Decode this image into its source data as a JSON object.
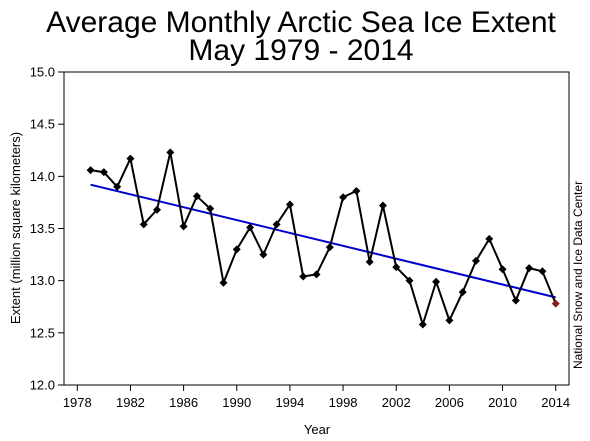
{
  "chart_data": {
    "type": "line",
    "title_line1": "Average Monthly Arctic Sea Ice Extent",
    "title_line2": "May 1979 - 2014",
    "xlabel": "Year",
    "ylabel": "Extent (million square kilometers)",
    "credit": "National Snow and Ice Data Center",
    "xlim": [
      1977,
      2015
    ],
    "ylim": [
      12.0,
      15.0
    ],
    "xticks": [
      1978,
      1982,
      1986,
      1990,
      1994,
      1998,
      2002,
      2006,
      2010,
      2014
    ],
    "yticks": [
      "12.0",
      "12.5",
      "13.0",
      "13.5",
      "14.0",
      "14.5",
      "15.0"
    ],
    "grid": false,
    "series": [
      {
        "color": "#000000",
        "marker": "diamond",
        "highlight_last_color": "#8b1a1a",
        "x": [
          1979,
          1980,
          1981,
          1982,
          1983,
          1984,
          1985,
          1986,
          1987,
          1988,
          1989,
          1990,
          1991,
          1992,
          1993,
          1994,
          1995,
          1996,
          1997,
          1998,
          1999,
          2000,
          2001,
          2002,
          2003,
          2004,
          2005,
          2006,
          2007,
          2008,
          2009,
          2010,
          2011,
          2012,
          2013,
          2014
        ],
        "y": [
          14.06,
          14.04,
          13.9,
          14.17,
          13.54,
          13.68,
          14.23,
          13.52,
          13.81,
          13.69,
          12.98,
          13.3,
          13.51,
          13.25,
          13.54,
          13.73,
          13.04,
          13.06,
          13.32,
          13.8,
          13.86,
          13.18,
          13.72,
          13.13,
          13.0,
          12.58,
          12.99,
          12.62,
          12.89,
          13.19,
          13.4,
          13.11,
          12.81,
          13.12,
          13.09,
          12.78
        ]
      },
      {
        "type": "trend",
        "color": "#0000cc",
        "x": [
          1979,
          2014
        ],
        "y": [
          13.92,
          12.84
        ]
      }
    ]
  }
}
